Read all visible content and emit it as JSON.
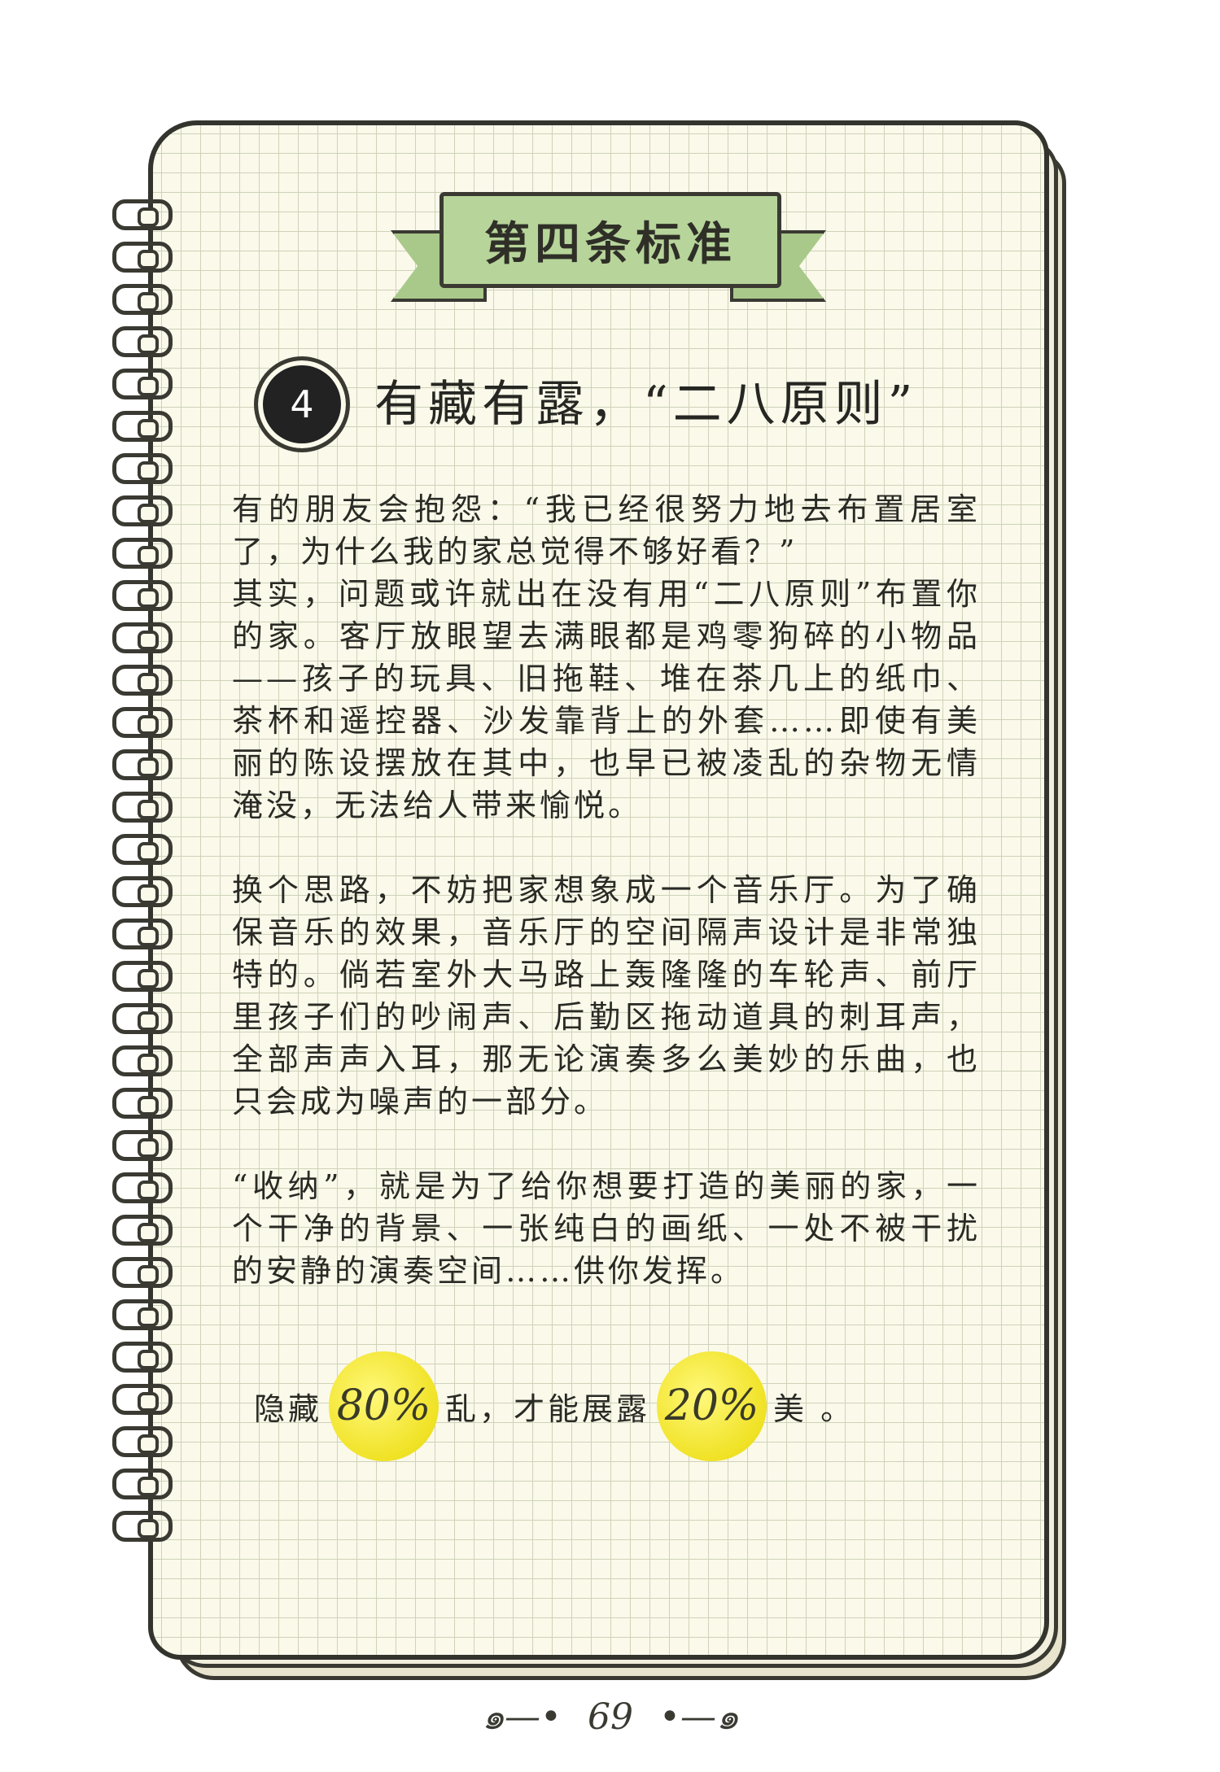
{
  "banner": {
    "title": "第四条标准"
  },
  "section": {
    "number": "4",
    "title": "有藏有露，“二八原则”"
  },
  "paragraphs": [
    "有的朋友会抱怨：“我已经很努力地去布置居室了，为什么我的家总觉得不够好看？”",
    "其实，问题或许就出在没有用“二八原则”布置你的家。客厅放眼望去满眼都是鸡零狗碎的小物品——孩子的玩具、旧拖鞋、堆在茶几上的纸巾、茶杯和遥控器、沙发靠背上的外套……即使有美丽的陈设摆放在其中，也早已被凌乱的杂物无情淹没，无法给人带来愉悦。",
    "换个思路，不妨把家想象成一个音乐厅。为了确保音乐的效果，音乐厅的空间隔声设计是非常独特的。倘若室外大马路上轰隆隆的车轮声、前厅里孩子们的吵闹声、后勤区拖动道具的刺耳声，全部声声入耳，那无论演奏多么美妙的乐曲，也只会成为噪声的一部分。",
    "“收纳”，就是为了给你想要打造的美丽的家，一个干净的背景、一张纯白的画纸、一处不被干扰的安静的演奏空间……供你发挥。"
  ],
  "highlight": {
    "prefix": "隐藏",
    "value1": "80%",
    "middle": "乱，才能展露",
    "value2": "20%",
    "suffix": "美 。"
  },
  "page_number": "69",
  "colors": {
    "ribbon": "#b7d59a",
    "highlight_circle": "#f0e225",
    "grid_line": "#cfd2b9"
  }
}
